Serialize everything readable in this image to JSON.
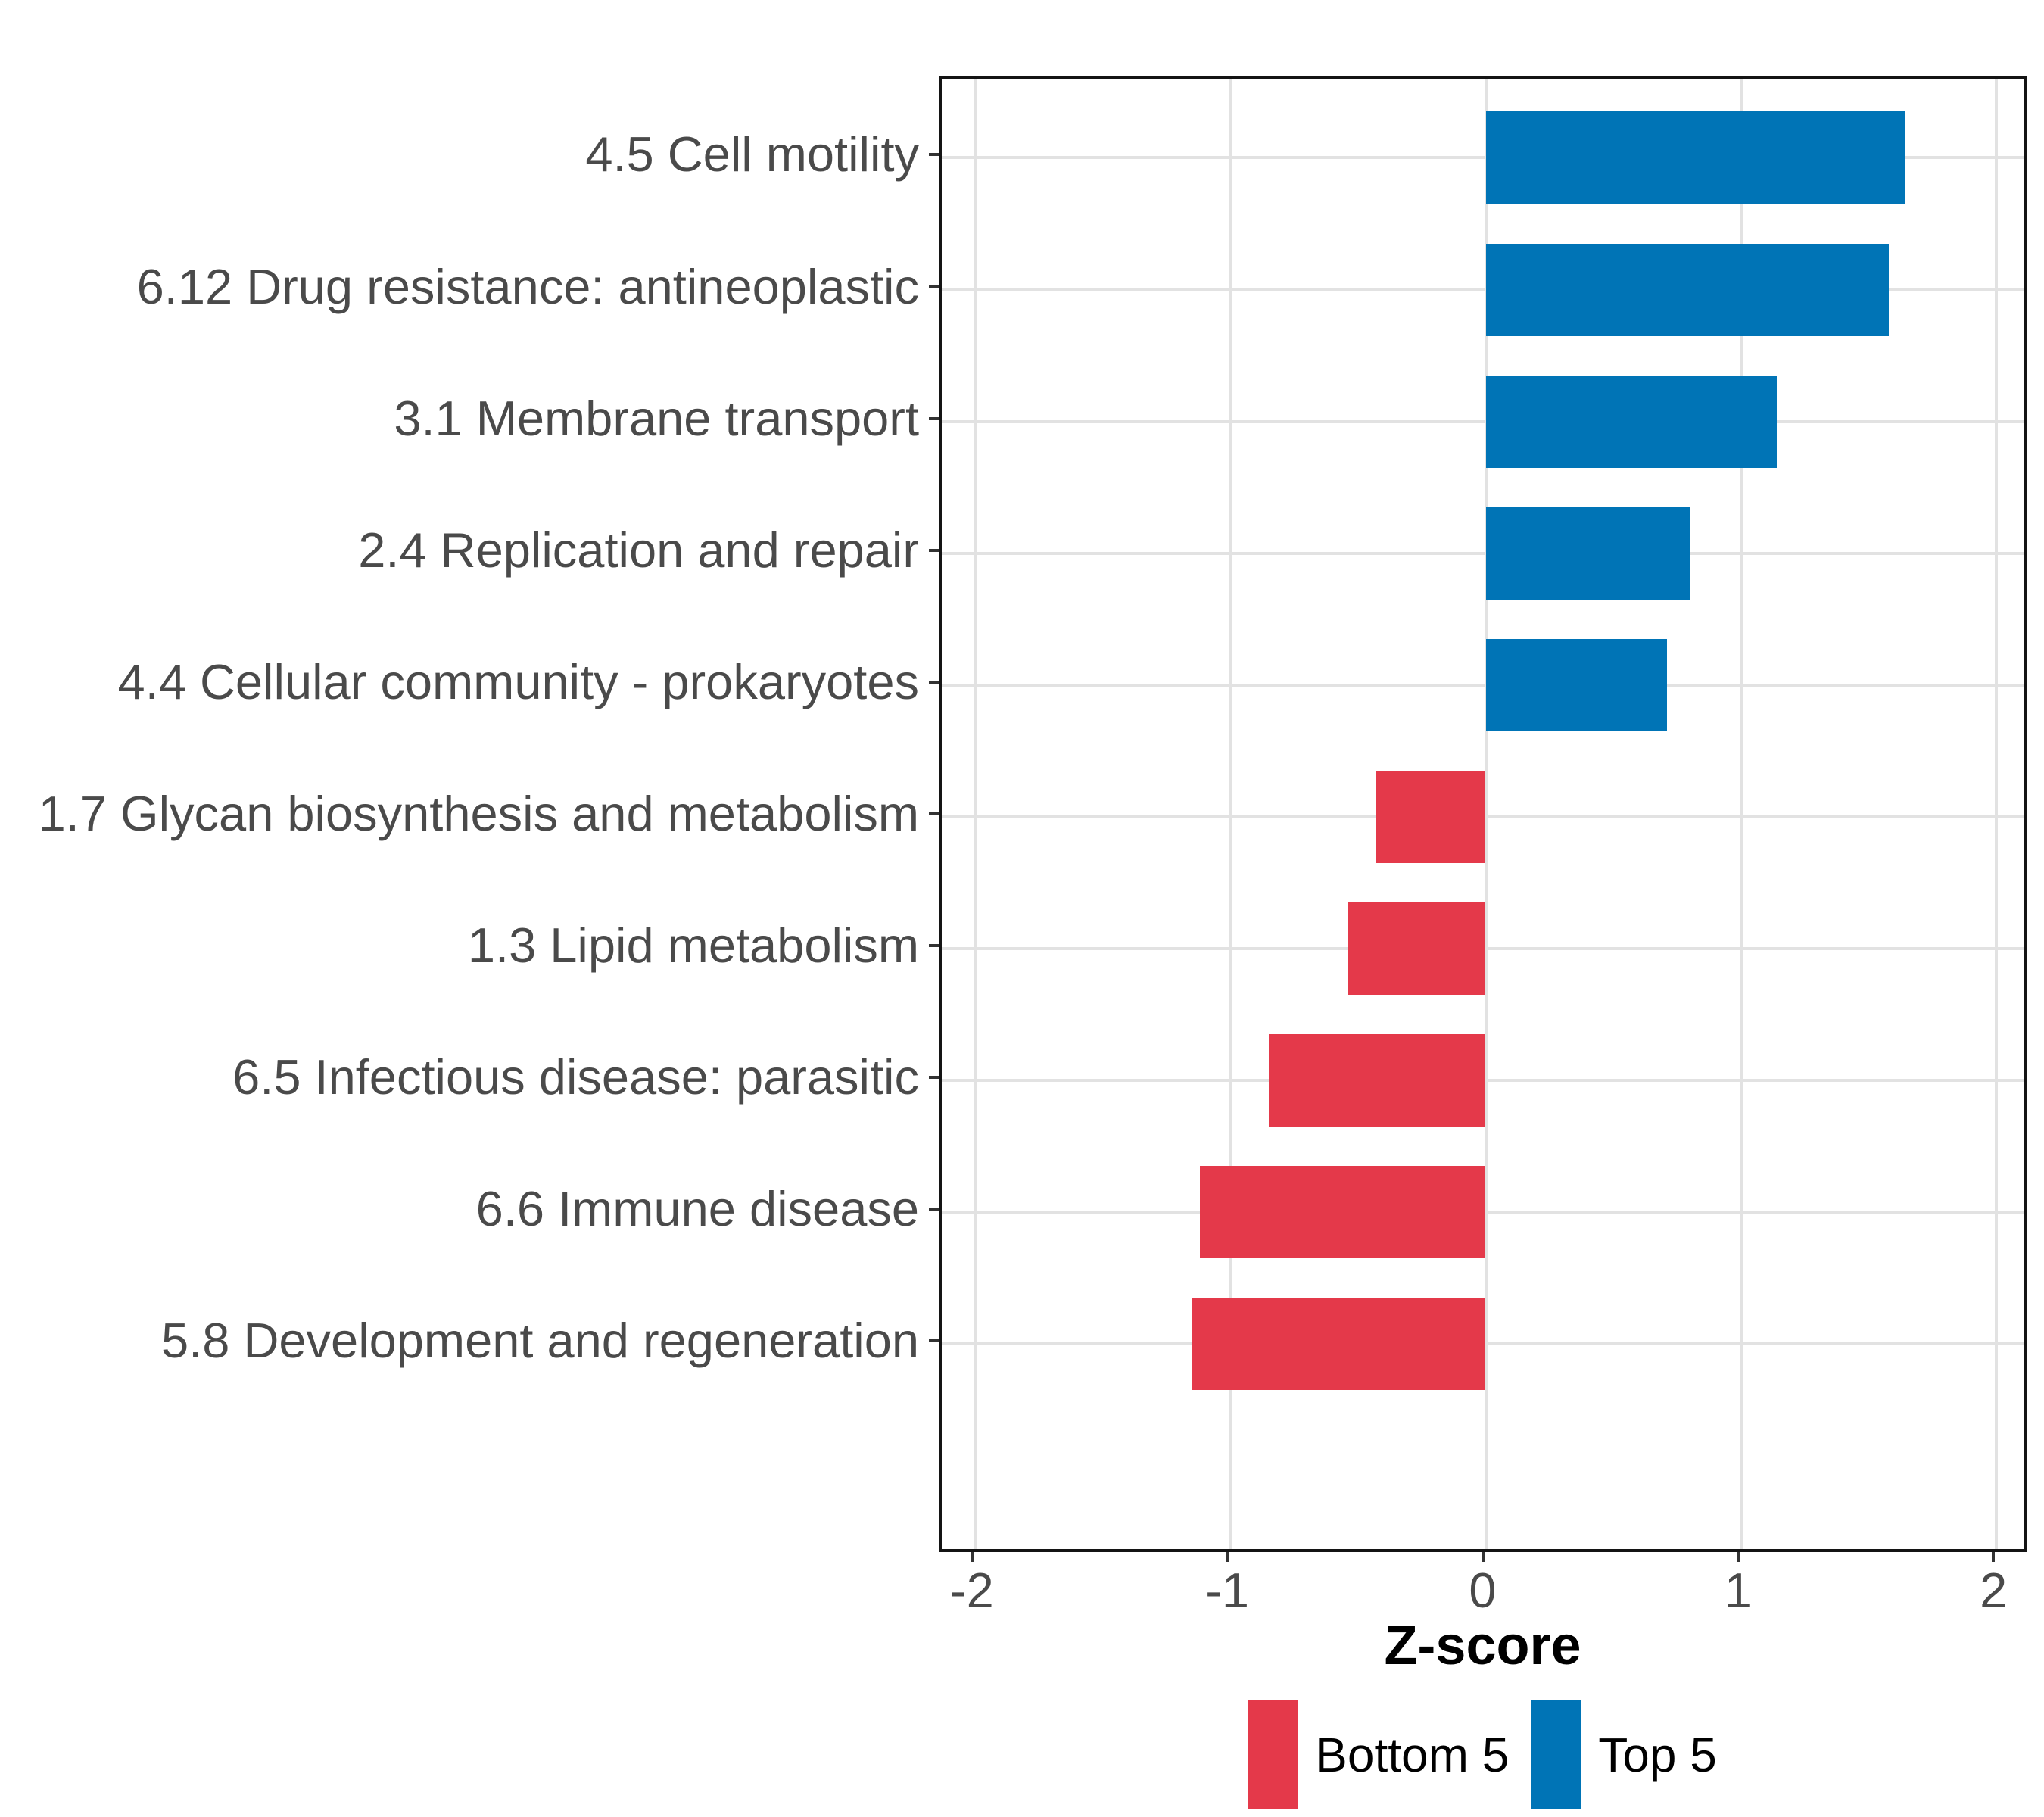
{
  "chart_data": {
    "type": "bar",
    "orientation": "horizontal",
    "title": "",
    "xlabel": "Z-score",
    "ylabel": "",
    "categories": [
      "4.5 Cell motility",
      "6.12 Drug resistance: antineoplastic",
      "3.1 Membrane transport",
      "2.4 Replication and repair",
      "4.4 Cellular community - prokaryotes",
      "1.7 Glycan biosynthesis and metabolism",
      "1.3 Lipid metabolism",
      "6.5 Infectious disease: parasitic",
      "6.6 Immune disease",
      "5.8 Development and regeneration"
    ],
    "values": [
      1.64,
      1.58,
      1.14,
      0.8,
      0.71,
      -0.43,
      -0.54,
      -0.85,
      -1.12,
      -1.15
    ],
    "groups": [
      "Top 5",
      "Top 5",
      "Top 5",
      "Top 5",
      "Top 5",
      "Bottom 5",
      "Bottom 5",
      "Bottom 5",
      "Bottom 5",
      "Bottom 5"
    ],
    "group_colors": {
      "Top 5": "#0074B6",
      "Bottom 5": "#E4394A"
    },
    "x_tick_values": [
      -2,
      -1,
      0,
      1,
      2
    ],
    "x_tick_labels": [
      "-2",
      "-1",
      "0",
      "1",
      "2"
    ],
    "xlim": [
      -2.13,
      2.13
    ],
    "grid": "major",
    "legend": {
      "position": "bottom",
      "entries": [
        {
          "label": "Bottom 5",
          "color": "#E4394A"
        },
        {
          "label": "Top 5",
          "color": "#0074B6"
        }
      ]
    },
    "style_colors": {
      "background": "#FFFFFF",
      "panel_border": "#141414",
      "gridline": "#E2E2E2",
      "axis_tick": "#333333",
      "axis_text": "#4A4A4A",
      "title_text": "#000000"
    }
  }
}
